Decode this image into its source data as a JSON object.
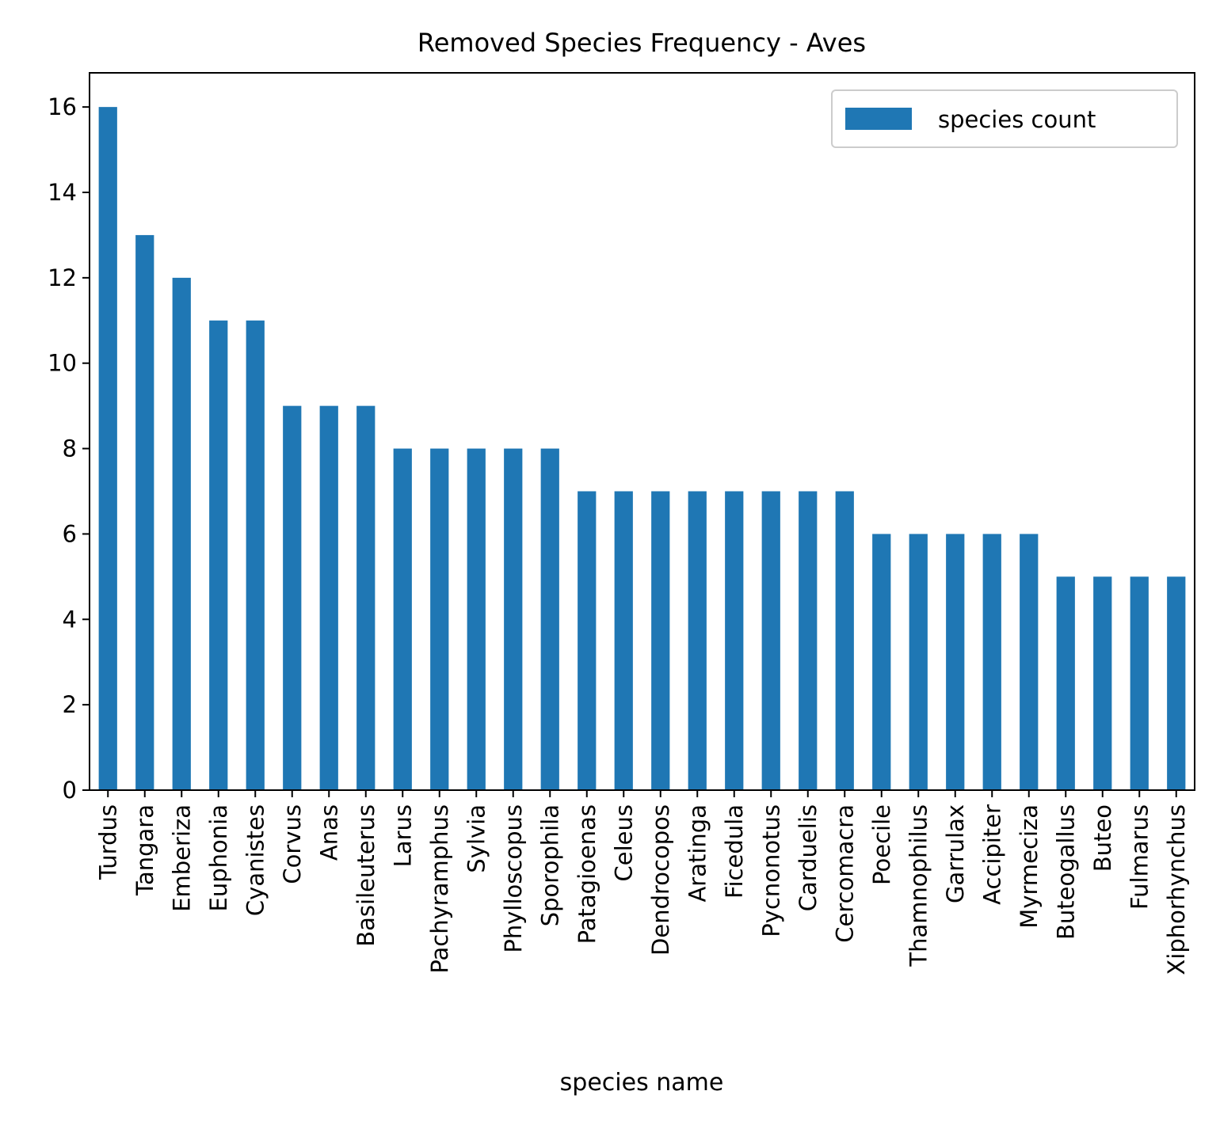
{
  "chart_data": {
    "type": "bar",
    "title": "Removed Species Frequency - Aves",
    "xlabel": "species name",
    "ylabel": "",
    "categories": [
      "Turdus",
      "Tangara",
      "Emberiza",
      "Euphonia",
      "Cyanistes",
      "Corvus",
      "Anas",
      "Basileuterus",
      "Larus",
      "Pachyramphus",
      "Sylvia",
      "Phylloscopus",
      "Sporophila",
      "Patagioenas",
      "Celeus",
      "Dendrocopos",
      "Aratinga",
      "Ficedula",
      "Pycnonotus",
      "Carduelis",
      "Cercomacra",
      "Poecile",
      "Thamnophilus",
      "Garrulax",
      "Accipiter",
      "Myrmeciza",
      "Buteogallus",
      "Buteo",
      "Fulmarus",
      "Xiphorhynchus"
    ],
    "series": [
      {
        "name": "species count",
        "color": "#1f77b4",
        "values": [
          16,
          13,
          12,
          11,
          11,
          9,
          9,
          9,
          8,
          8,
          8,
          8,
          8,
          7,
          7,
          7,
          7,
          7,
          7,
          7,
          7,
          6,
          6,
          6,
          6,
          6,
          5,
          5,
          5,
          5
        ]
      }
    ],
    "ylim": [
      0,
      16.8
    ],
    "yticks": [
      0,
      2,
      4,
      6,
      8,
      10,
      12,
      14,
      16
    ],
    "grid": false,
    "legend": "top-right"
  }
}
